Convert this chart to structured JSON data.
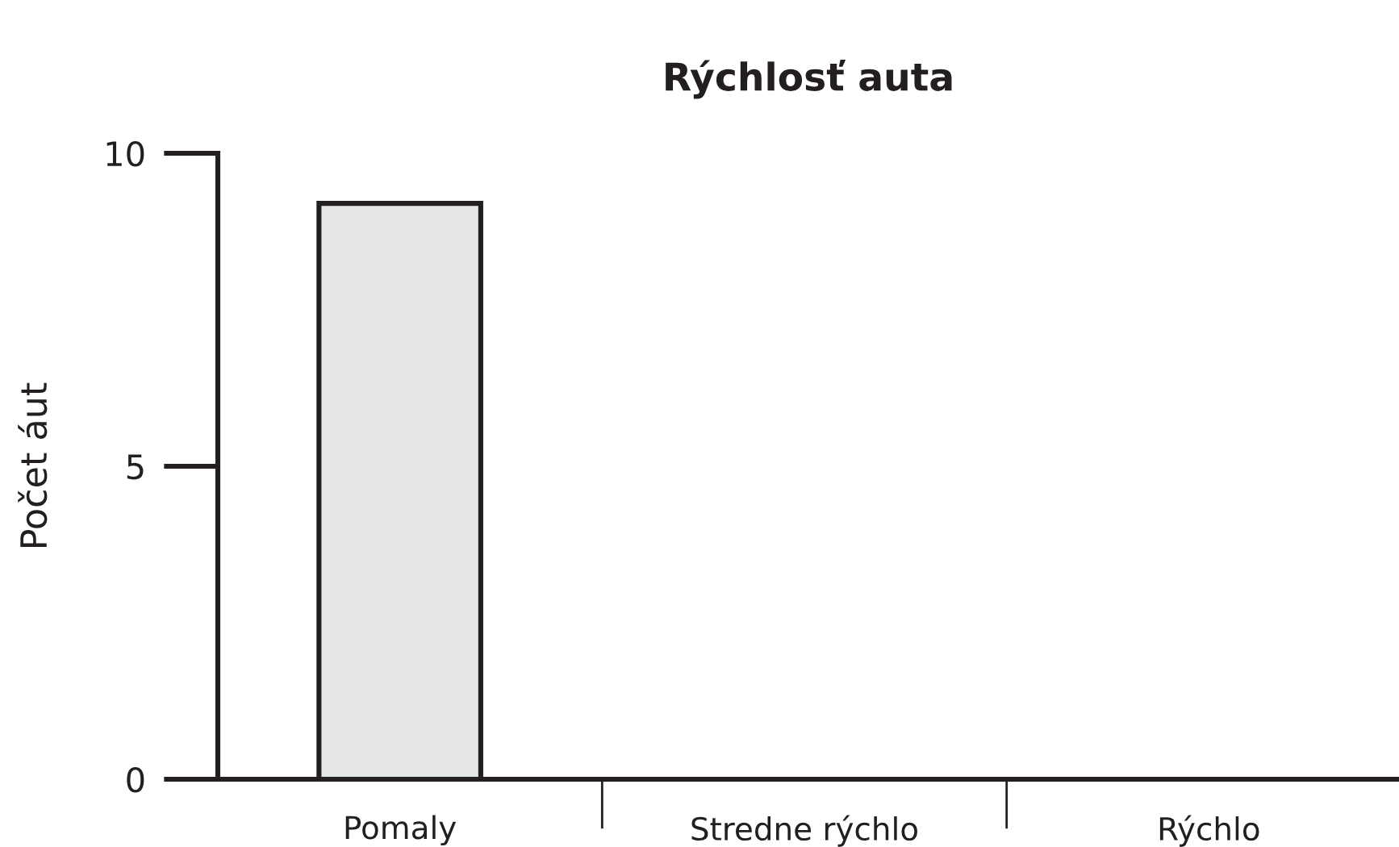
{
  "chart_data": {
    "type": "bar",
    "title": "Rýchlosť auta",
    "ylabel": "Počet áut",
    "categories": [
      "Pomaly",
      "Stredne rýchlo",
      "Rýchlo"
    ],
    "values": [
      9.2,
      0,
      0
    ],
    "color": "#e6e7e8",
    "ylim": [
      0,
      10
    ],
    "yticks": [
      0,
      5,
      10
    ]
  }
}
